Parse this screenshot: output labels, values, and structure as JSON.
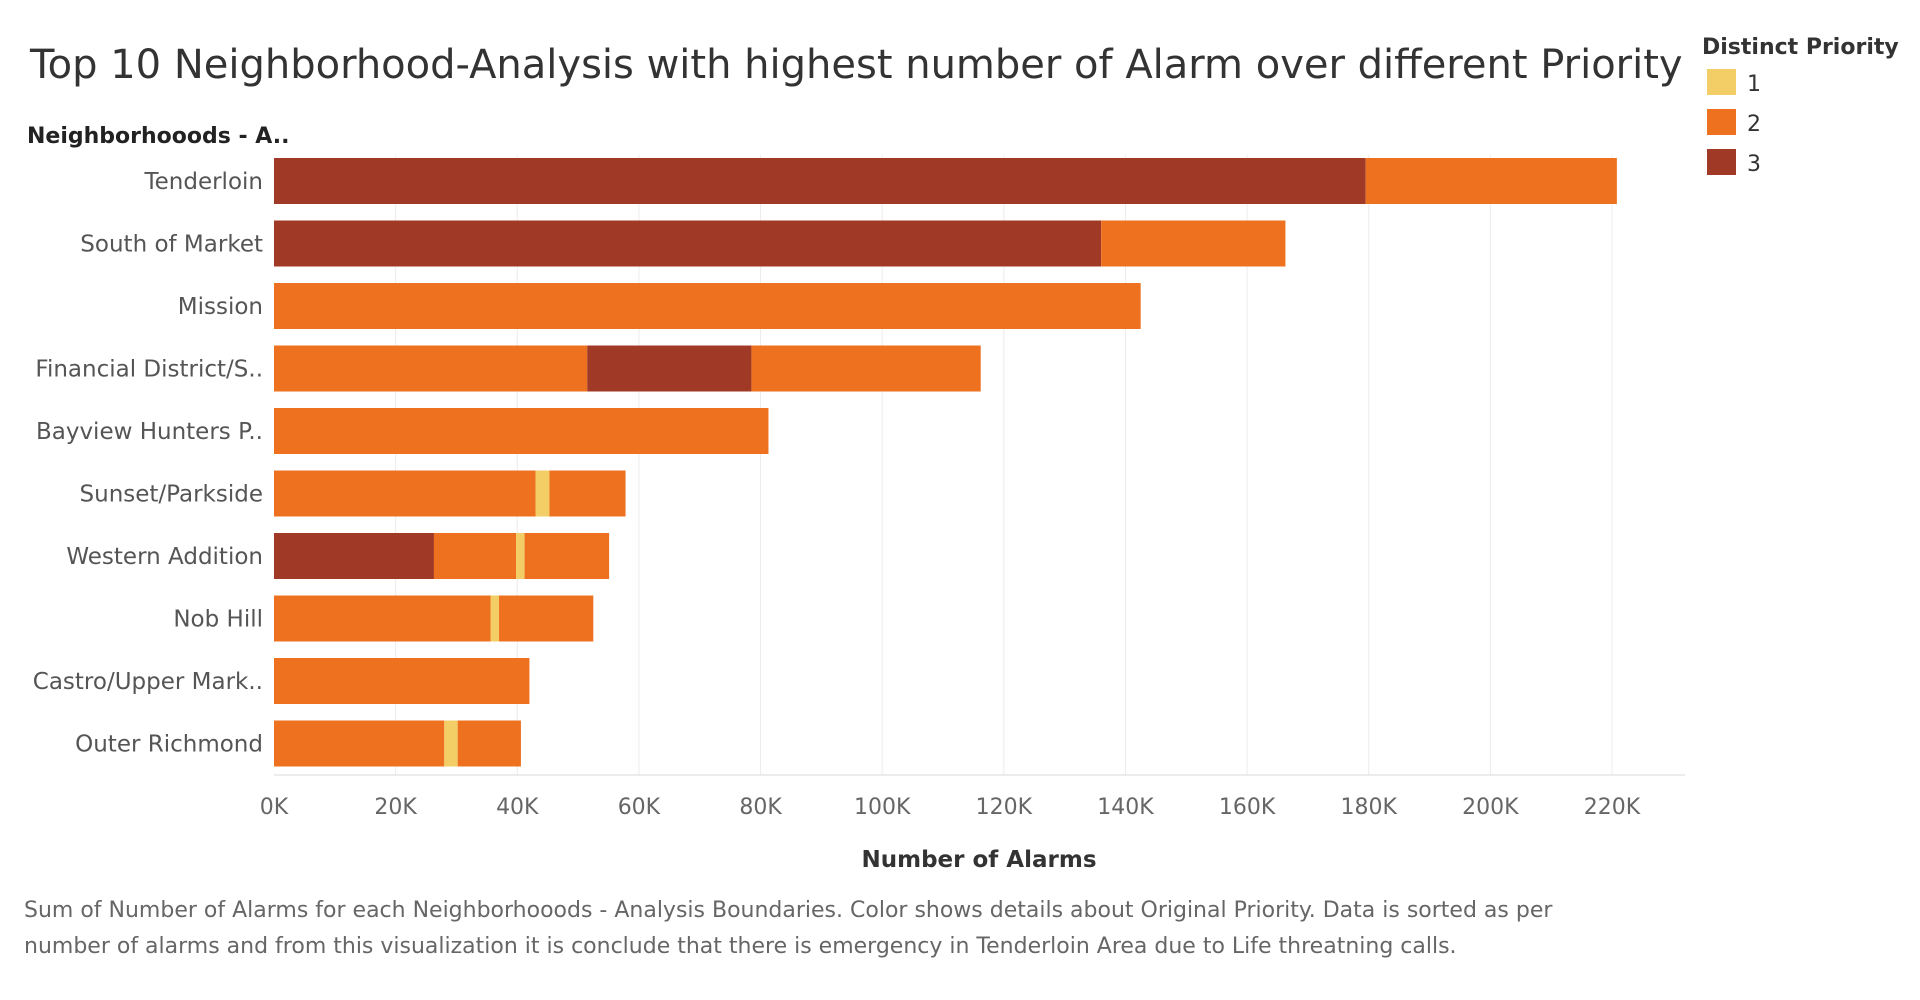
{
  "chart_data": {
    "type": "bar",
    "orientation": "horizontal",
    "stacked": true,
    "title": "Top 10 Neighborhood-Analysis with highest number of Alarm over different Priority",
    "row_header": "Neighborhooods - A..",
    "xlabel": "Number of Alarms",
    "xlim": [
      0,
      232000
    ],
    "x_ticks": [
      0,
      20000,
      40000,
      60000,
      80000,
      100000,
      120000,
      140000,
      160000,
      180000,
      200000,
      220000
    ],
    "x_tick_labels": [
      "0K",
      "20K",
      "40K",
      "60K",
      "80K",
      "100K",
      "120K",
      "140K",
      "160K",
      "180K",
      "200K",
      "220K"
    ],
    "grid": true,
    "legend": {
      "title": "Distinct Priority",
      "placement": "top-right",
      "items": [
        {
          "label": "1",
          "color": "#f3cd66"
        },
        {
          "label": "2",
          "color": "#ee711f"
        },
        {
          "label": "3",
          "color": "#a03a26"
        }
      ]
    },
    "categories": [
      "Tenderloin",
      "South of Market",
      "Mission",
      "Financial District/S..",
      "Bayview Hunters P..",
      "Sunset/Parkside",
      "Western Addition",
      "Nob Hill",
      "Castro/Upper Mark..",
      "Outer Richmond"
    ],
    "segments": [
      [
        {
          "priority": "3",
          "value": 179500
        },
        {
          "priority": "2",
          "value": 41300
        }
      ],
      [
        {
          "priority": "3",
          "value": 136000
        },
        {
          "priority": "2",
          "value": 30300
        }
      ],
      [
        {
          "priority": "2",
          "value": 142500
        }
      ],
      [
        {
          "priority": "2",
          "value": 51500
        },
        {
          "priority": "3",
          "value": 27000
        },
        {
          "priority": "2",
          "value": 37700
        }
      ],
      [
        {
          "priority": "2",
          "value": 81300
        }
      ],
      [
        {
          "priority": "2",
          "value": 43000
        },
        {
          "priority": "1",
          "value": 2300
        },
        {
          "priority": "2",
          "value": 12500
        }
      ],
      [
        {
          "priority": "3",
          "value": 26300
        },
        {
          "priority": "2",
          "value": 13500
        },
        {
          "priority": "1",
          "value": 1400
        },
        {
          "priority": "2",
          "value": 13900
        }
      ],
      [
        {
          "priority": "2",
          "value": 35600
        },
        {
          "priority": "1",
          "value": 1400
        },
        {
          "priority": "2",
          "value": 15500
        }
      ],
      [
        {
          "priority": "2",
          "value": 42000
        }
      ],
      [
        {
          "priority": "2",
          "value": 28000
        },
        {
          "priority": "1",
          "value": 2200
        },
        {
          "priority": "2",
          "value": 10400
        }
      ]
    ],
    "caption": [
      "Sum of Number of Alarms for each Neighborhooods - Analysis Boundaries.  Color shows details about Original Priority. Data is sorted as per",
      "number of alarms and from this visualization it is conclude that there is emergency in Tenderloin Area due to Life threatning calls."
    ]
  }
}
